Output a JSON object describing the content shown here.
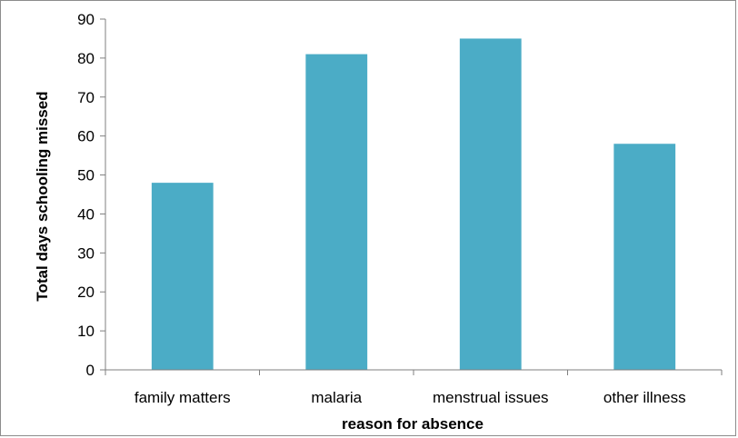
{
  "chart_data": {
    "type": "bar",
    "categories": [
      "family matters",
      "malaria",
      "menstrual issues",
      "other illness"
    ],
    "values": [
      48,
      81,
      85,
      58
    ],
    "title": "",
    "xlabel": "reason for absence",
    "ylabel": "Total days schooling missed",
    "ylim": [
      0,
      90
    ],
    "yticks": [
      "0",
      "10",
      "20",
      "30",
      "40",
      "50",
      "60",
      "70",
      "80",
      "90"
    ],
    "grid": false,
    "legend": "none",
    "bar_color": "#4bacc6",
    "axis_color": "#7f7f7f"
  }
}
